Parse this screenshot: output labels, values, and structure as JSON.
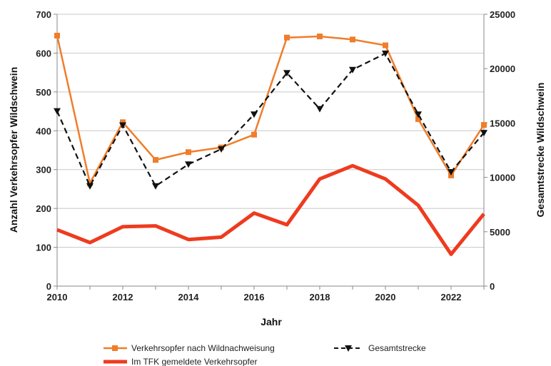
{
  "chart_data": {
    "type": "line",
    "x": [
      2010,
      2011,
      2012,
      2013,
      2014,
      2015,
      2016,
      2017,
      2018,
      2019,
      2020,
      2021,
      2022,
      2023
    ],
    "xlabel": "Jahr",
    "ylabel_left": "Anzahl Verkehrsopfer Wildschwein",
    "ylabel_right": "Gesamtstrecke Wildschwein",
    "ylim_left": [
      0,
      700
    ],
    "ylim_right": [
      0,
      25000
    ],
    "x_ticks": [
      "2010",
      "2012",
      "2014",
      "2016",
      "2018",
      "2020",
      "2022"
    ],
    "y_ticks_left": [
      "0",
      "100",
      "200",
      "300",
      "400",
      "500",
      "600",
      "700"
    ],
    "y_ticks_right": [
      "0",
      "5000",
      "10000",
      "15000",
      "20000",
      "25000"
    ],
    "grid": "horizontal",
    "legend_position": "bottom",
    "series": [
      {
        "name": "Verkehrsopfer nach Wildnachweisung",
        "axis": "left",
        "color": "#f07d2a",
        "style": "line-square-markers",
        "values": [
          645,
          265,
          422,
          325,
          345,
          357,
          390,
          640,
          643,
          635,
          620,
          430,
          285,
          415
        ]
      },
      {
        "name": "Gesamtstrecke",
        "axis": "right",
        "color": "#111111",
        "style": "dashed-triangle-markers",
        "values": [
          16100,
          9200,
          14800,
          9200,
          11200,
          12600,
          15800,
          19600,
          16300,
          19900,
          21400,
          15800,
          10500,
          14100
        ]
      },
      {
        "name": "Im TFK gemeldete Verkehrsopfer",
        "axis": "left",
        "color": "#ee3b1f",
        "style": "thick-line",
        "values": [
          145,
          112,
          153,
          155,
          120,
          126,
          188,
          158,
          276,
          310,
          276,
          208,
          82,
          186
        ]
      }
    ]
  }
}
